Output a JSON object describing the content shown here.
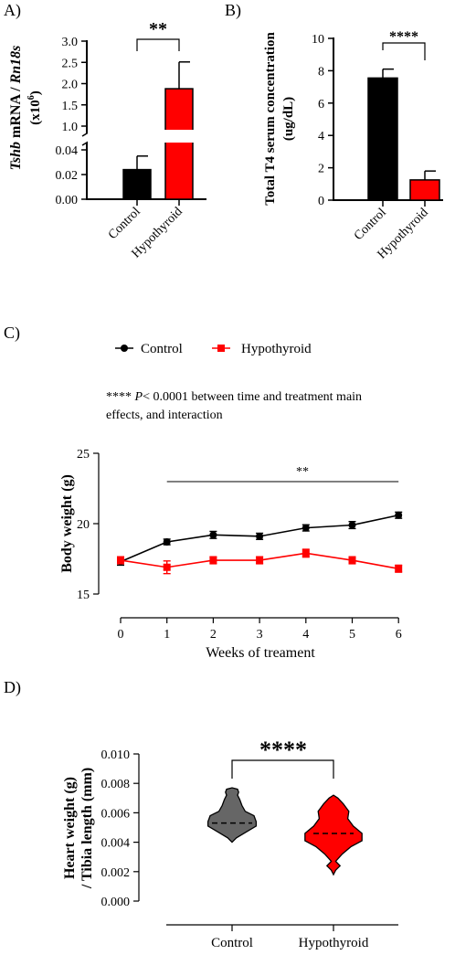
{
  "colors": {
    "control": "#000000",
    "hypothyroid": "#ff0000",
    "violin_control": "#666666"
  },
  "chart_data": [
    {
      "panel": "A)",
      "type": "bar",
      "categories": [
        "Control",
        "Hypothyroid"
      ],
      "series": [
        {
          "values": [
            0.024,
            1.88
          ],
          "errors": [
            0.011,
            0.63
          ]
        }
      ],
      "ylabel_parts": [
        "Tshb",
        " mRNA / ",
        "Rn18s"
      ],
      "ylabel_sub": "(x10",
      "ylabel_exp": "6",
      "ylabel_close": ")",
      "axis_break": {
        "lower_range": [
          0,
          0.04
        ],
        "upper_range": [
          1.0,
          3.0
        ]
      },
      "yticks_lower": [
        "0.00",
        "0.02",
        "0.04"
      ],
      "yticks_upper": [
        "1.0",
        "1.5",
        "2.0",
        "2.5",
        "3.0"
      ],
      "significance": "**"
    },
    {
      "panel": "B)",
      "type": "bar",
      "categories": [
        "Control",
        "Hypothyroid"
      ],
      "series": [
        {
          "values": [
            7.55,
            1.25
          ],
          "errors": [
            0.55,
            0.55
          ]
        }
      ],
      "ylabel_line1": "Total T4 serum concentration",
      "ylabel_line2": "(ug/dL)",
      "ylim": [
        0,
        10
      ],
      "yticks": [
        "0",
        "2",
        "4",
        "6",
        "8",
        "10"
      ],
      "significance": "****"
    },
    {
      "panel": "C)",
      "type": "line",
      "x": [
        0,
        1,
        2,
        3,
        4,
        5,
        6
      ],
      "series": [
        {
          "name": "Control",
          "values": [
            17.3,
            18.7,
            19.2,
            19.1,
            19.7,
            19.9,
            20.6
          ],
          "errors": [
            0.25,
            0.2,
            0.25,
            0.22,
            0.22,
            0.25,
            0.22
          ]
        },
        {
          "name": "Hypothyroid",
          "values": [
            17.4,
            16.9,
            17.4,
            17.4,
            17.9,
            17.4,
            16.8
          ],
          "errors": [
            0.25,
            0.45,
            0.25,
            0.25,
            0.28,
            0.25,
            0.25
          ]
        }
      ],
      "xlabel": "Weeks of treament",
      "ylabel": "Body weight (g)",
      "ylim": [
        15,
        25
      ],
      "yticks": [
        "15",
        "20",
        "25"
      ],
      "xticks": [
        "0",
        "1",
        "2",
        "3",
        "4",
        "5",
        "6"
      ],
      "note_stars": "****",
      "note_p": "P",
      "note_rest": "< 0.0001 between time and treatment main",
      "note_line2": "effects, and interaction",
      "significance": "**"
    },
    {
      "panel": "D)",
      "type": "violin",
      "categories": [
        "Control",
        "Hypothyroid"
      ],
      "series": [
        {
          "name": "Control",
          "median": 0.0053,
          "profile": [
            [
              0.004,
              0.0
            ],
            [
              0.0043,
              0.4
            ],
            [
              0.0047,
              1.3
            ],
            [
              0.0051,
              2.2
            ],
            [
              0.0054,
              2.2
            ],
            [
              0.0058,
              2.0
            ],
            [
              0.0061,
              1.2
            ],
            [
              0.0065,
              0.9
            ],
            [
              0.0069,
              0.7
            ],
            [
              0.0072,
              0.5
            ],
            [
              0.0074,
              0.6
            ],
            [
              0.0076,
              0.5
            ],
            [
              0.0077,
              0.0
            ]
          ]
        },
        {
          "name": "Hypothyroid",
          "median": 0.0046,
          "profile": [
            [
              0.0018,
              0.0
            ],
            [
              0.0021,
              0.2
            ],
            [
              0.0024,
              0.6
            ],
            [
              0.0027,
              0.2
            ],
            [
              0.0032,
              0.8
            ],
            [
              0.0037,
              1.6
            ],
            [
              0.0041,
              2.6
            ],
            [
              0.0046,
              2.6
            ],
            [
              0.0051,
              1.8
            ],
            [
              0.0056,
              1.3
            ],
            [
              0.0061,
              1.4
            ],
            [
              0.0066,
              0.9
            ],
            [
              0.007,
              0.4
            ],
            [
              0.0072,
              0.0
            ]
          ]
        }
      ],
      "ylabel_line1": "Heart weight (g)",
      "ylabel_line2": "/ Tibia length (mm)",
      "ylim": [
        0,
        0.01
      ],
      "yticks": [
        "0.000",
        "0.002",
        "0.004",
        "0.006",
        "0.008",
        "0.010"
      ],
      "significance": "****"
    }
  ]
}
